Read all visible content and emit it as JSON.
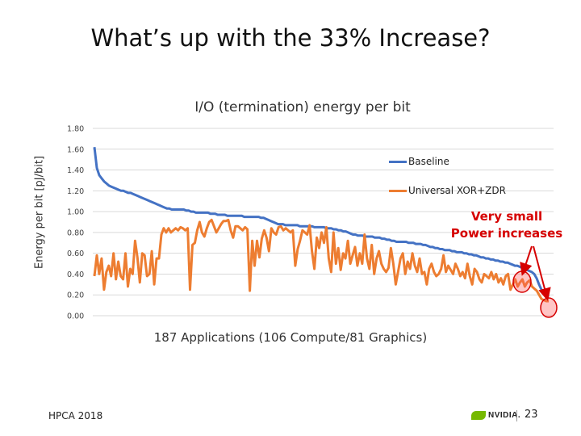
{
  "slide": {
    "title": "What’s up with the 33% Increase?",
    "footer_left": "HPCA 2018",
    "logo_text": "NVIDIA.",
    "page_number": "23"
  },
  "annotation": {
    "line1": "Very small",
    "line2": "Power increases",
    "color": "#d60000"
  },
  "chart_data": {
    "type": "line",
    "title": "I/O (termination) energy per bit",
    "xlabel": "187 Applications (106 Compute/81 Graphics)",
    "ylabel": "Energy per bit [pJ/bit]",
    "ylim": [
      0,
      1.8
    ],
    "yticks": [
      "0.00",
      "0.20",
      "0.40",
      "0.60",
      "0.80",
      "1.00",
      "1.20",
      "1.40",
      "1.60",
      "1.80"
    ],
    "grid": true,
    "legend_position": "top-right",
    "series": [
      {
        "name": "Baseline",
        "color": "#4472c4",
        "values": [
          1.62,
          1.42,
          1.35,
          1.32,
          1.29,
          1.27,
          1.25,
          1.24,
          1.23,
          1.22,
          1.21,
          1.2,
          1.2,
          1.19,
          1.18,
          1.18,
          1.17,
          1.16,
          1.15,
          1.14,
          1.13,
          1.12,
          1.11,
          1.1,
          1.09,
          1.08,
          1.07,
          1.06,
          1.05,
          1.04,
          1.03,
          1.03,
          1.02,
          1.02,
          1.02,
          1.02,
          1.02,
          1.02,
          1.01,
          1.01,
          1.0,
          1.0,
          0.99,
          0.99,
          0.99,
          0.99,
          0.99,
          0.99,
          0.98,
          0.98,
          0.98,
          0.97,
          0.97,
          0.97,
          0.97,
          0.96,
          0.96,
          0.96,
          0.96,
          0.96,
          0.96,
          0.96,
          0.95,
          0.95,
          0.95,
          0.95,
          0.95,
          0.95,
          0.95,
          0.94,
          0.94,
          0.93,
          0.92,
          0.91,
          0.9,
          0.89,
          0.88,
          0.88,
          0.88,
          0.87,
          0.87,
          0.87,
          0.87,
          0.87,
          0.87,
          0.86,
          0.86,
          0.86,
          0.86,
          0.86,
          0.86,
          0.85,
          0.85,
          0.85,
          0.85,
          0.85,
          0.84,
          0.84,
          0.84,
          0.83,
          0.83,
          0.82,
          0.82,
          0.81,
          0.81,
          0.8,
          0.79,
          0.78,
          0.78,
          0.77,
          0.77,
          0.77,
          0.76,
          0.76,
          0.76,
          0.76,
          0.75,
          0.75,
          0.75,
          0.74,
          0.74,
          0.73,
          0.73,
          0.72,
          0.72,
          0.71,
          0.71,
          0.71,
          0.71,
          0.71,
          0.7,
          0.7,
          0.7,
          0.69,
          0.69,
          0.69,
          0.68,
          0.68,
          0.67,
          0.66,
          0.66,
          0.65,
          0.65,
          0.64,
          0.64,
          0.63,
          0.63,
          0.63,
          0.62,
          0.62,
          0.61,
          0.61,
          0.61,
          0.6,
          0.6,
          0.59,
          0.59,
          0.58,
          0.58,
          0.57,
          0.56,
          0.56,
          0.55,
          0.55,
          0.54,
          0.54,
          0.53,
          0.53,
          0.52,
          0.52,
          0.51,
          0.51,
          0.5,
          0.49,
          0.48,
          0.48,
          0.47,
          0.46,
          0.45,
          0.44,
          0.43,
          0.42,
          0.4,
          0.36,
          0.3,
          0.25,
          0.22,
          0.2,
          0.18
        ]
      },
      {
        "name": "Universal XOR+ZDR",
        "color": "#ed7d31",
        "values": [
          0.38,
          0.58,
          0.4,
          0.55,
          0.25,
          0.42,
          0.48,
          0.38,
          0.6,
          0.35,
          0.52,
          0.38,
          0.35,
          0.6,
          0.28,
          0.45,
          0.4,
          0.72,
          0.56,
          0.32,
          0.6,
          0.58,
          0.38,
          0.4,
          0.62,
          0.3,
          0.55,
          0.55,
          0.78,
          0.84,
          0.8,
          0.84,
          0.8,
          0.82,
          0.84,
          0.82,
          0.85,
          0.84,
          0.82,
          0.84,
          0.25,
          0.68,
          0.7,
          0.82,
          0.9,
          0.8,
          0.76,
          0.84,
          0.9,
          0.92,
          0.86,
          0.8,
          0.84,
          0.88,
          0.91,
          0.91,
          0.92,
          0.82,
          0.75,
          0.86,
          0.86,
          0.84,
          0.82,
          0.85,
          0.83,
          0.24,
          0.72,
          0.48,
          0.72,
          0.56,
          0.74,
          0.82,
          0.75,
          0.62,
          0.84,
          0.8,
          0.78,
          0.85,
          0.86,
          0.82,
          0.84,
          0.82,
          0.8,
          0.82,
          0.48,
          0.64,
          0.72,
          0.82,
          0.8,
          0.78,
          0.87,
          0.62,
          0.45,
          0.75,
          0.65,
          0.8,
          0.7,
          0.85,
          0.55,
          0.42,
          0.8,
          0.5,
          0.65,
          0.44,
          0.6,
          0.55,
          0.72,
          0.5,
          0.58,
          0.66,
          0.48,
          0.6,
          0.5,
          0.78,
          0.55,
          0.45,
          0.68,
          0.4,
          0.55,
          0.62,
          0.5,
          0.45,
          0.42,
          0.46,
          0.65,
          0.5,
          0.3,
          0.42,
          0.55,
          0.6,
          0.4,
          0.52,
          0.45,
          0.6,
          0.48,
          0.42,
          0.55,
          0.4,
          0.42,
          0.3,
          0.45,
          0.5,
          0.42,
          0.38,
          0.4,
          0.45,
          0.58,
          0.42,
          0.48,
          0.44,
          0.4,
          0.5,
          0.45,
          0.38,
          0.42,
          0.36,
          0.5,
          0.38,
          0.3,
          0.45,
          0.42,
          0.35,
          0.32,
          0.4,
          0.38,
          0.36,
          0.42,
          0.35,
          0.4,
          0.32,
          0.36,
          0.3,
          0.38,
          0.4,
          0.25,
          0.3,
          0.35,
          0.28,
          0.32,
          0.35,
          0.28,
          0.32,
          0.34,
          0.28,
          0.26,
          0.24,
          0.2,
          0.16,
          0.15,
          0.14,
          0.14
        ]
      }
    ]
  }
}
